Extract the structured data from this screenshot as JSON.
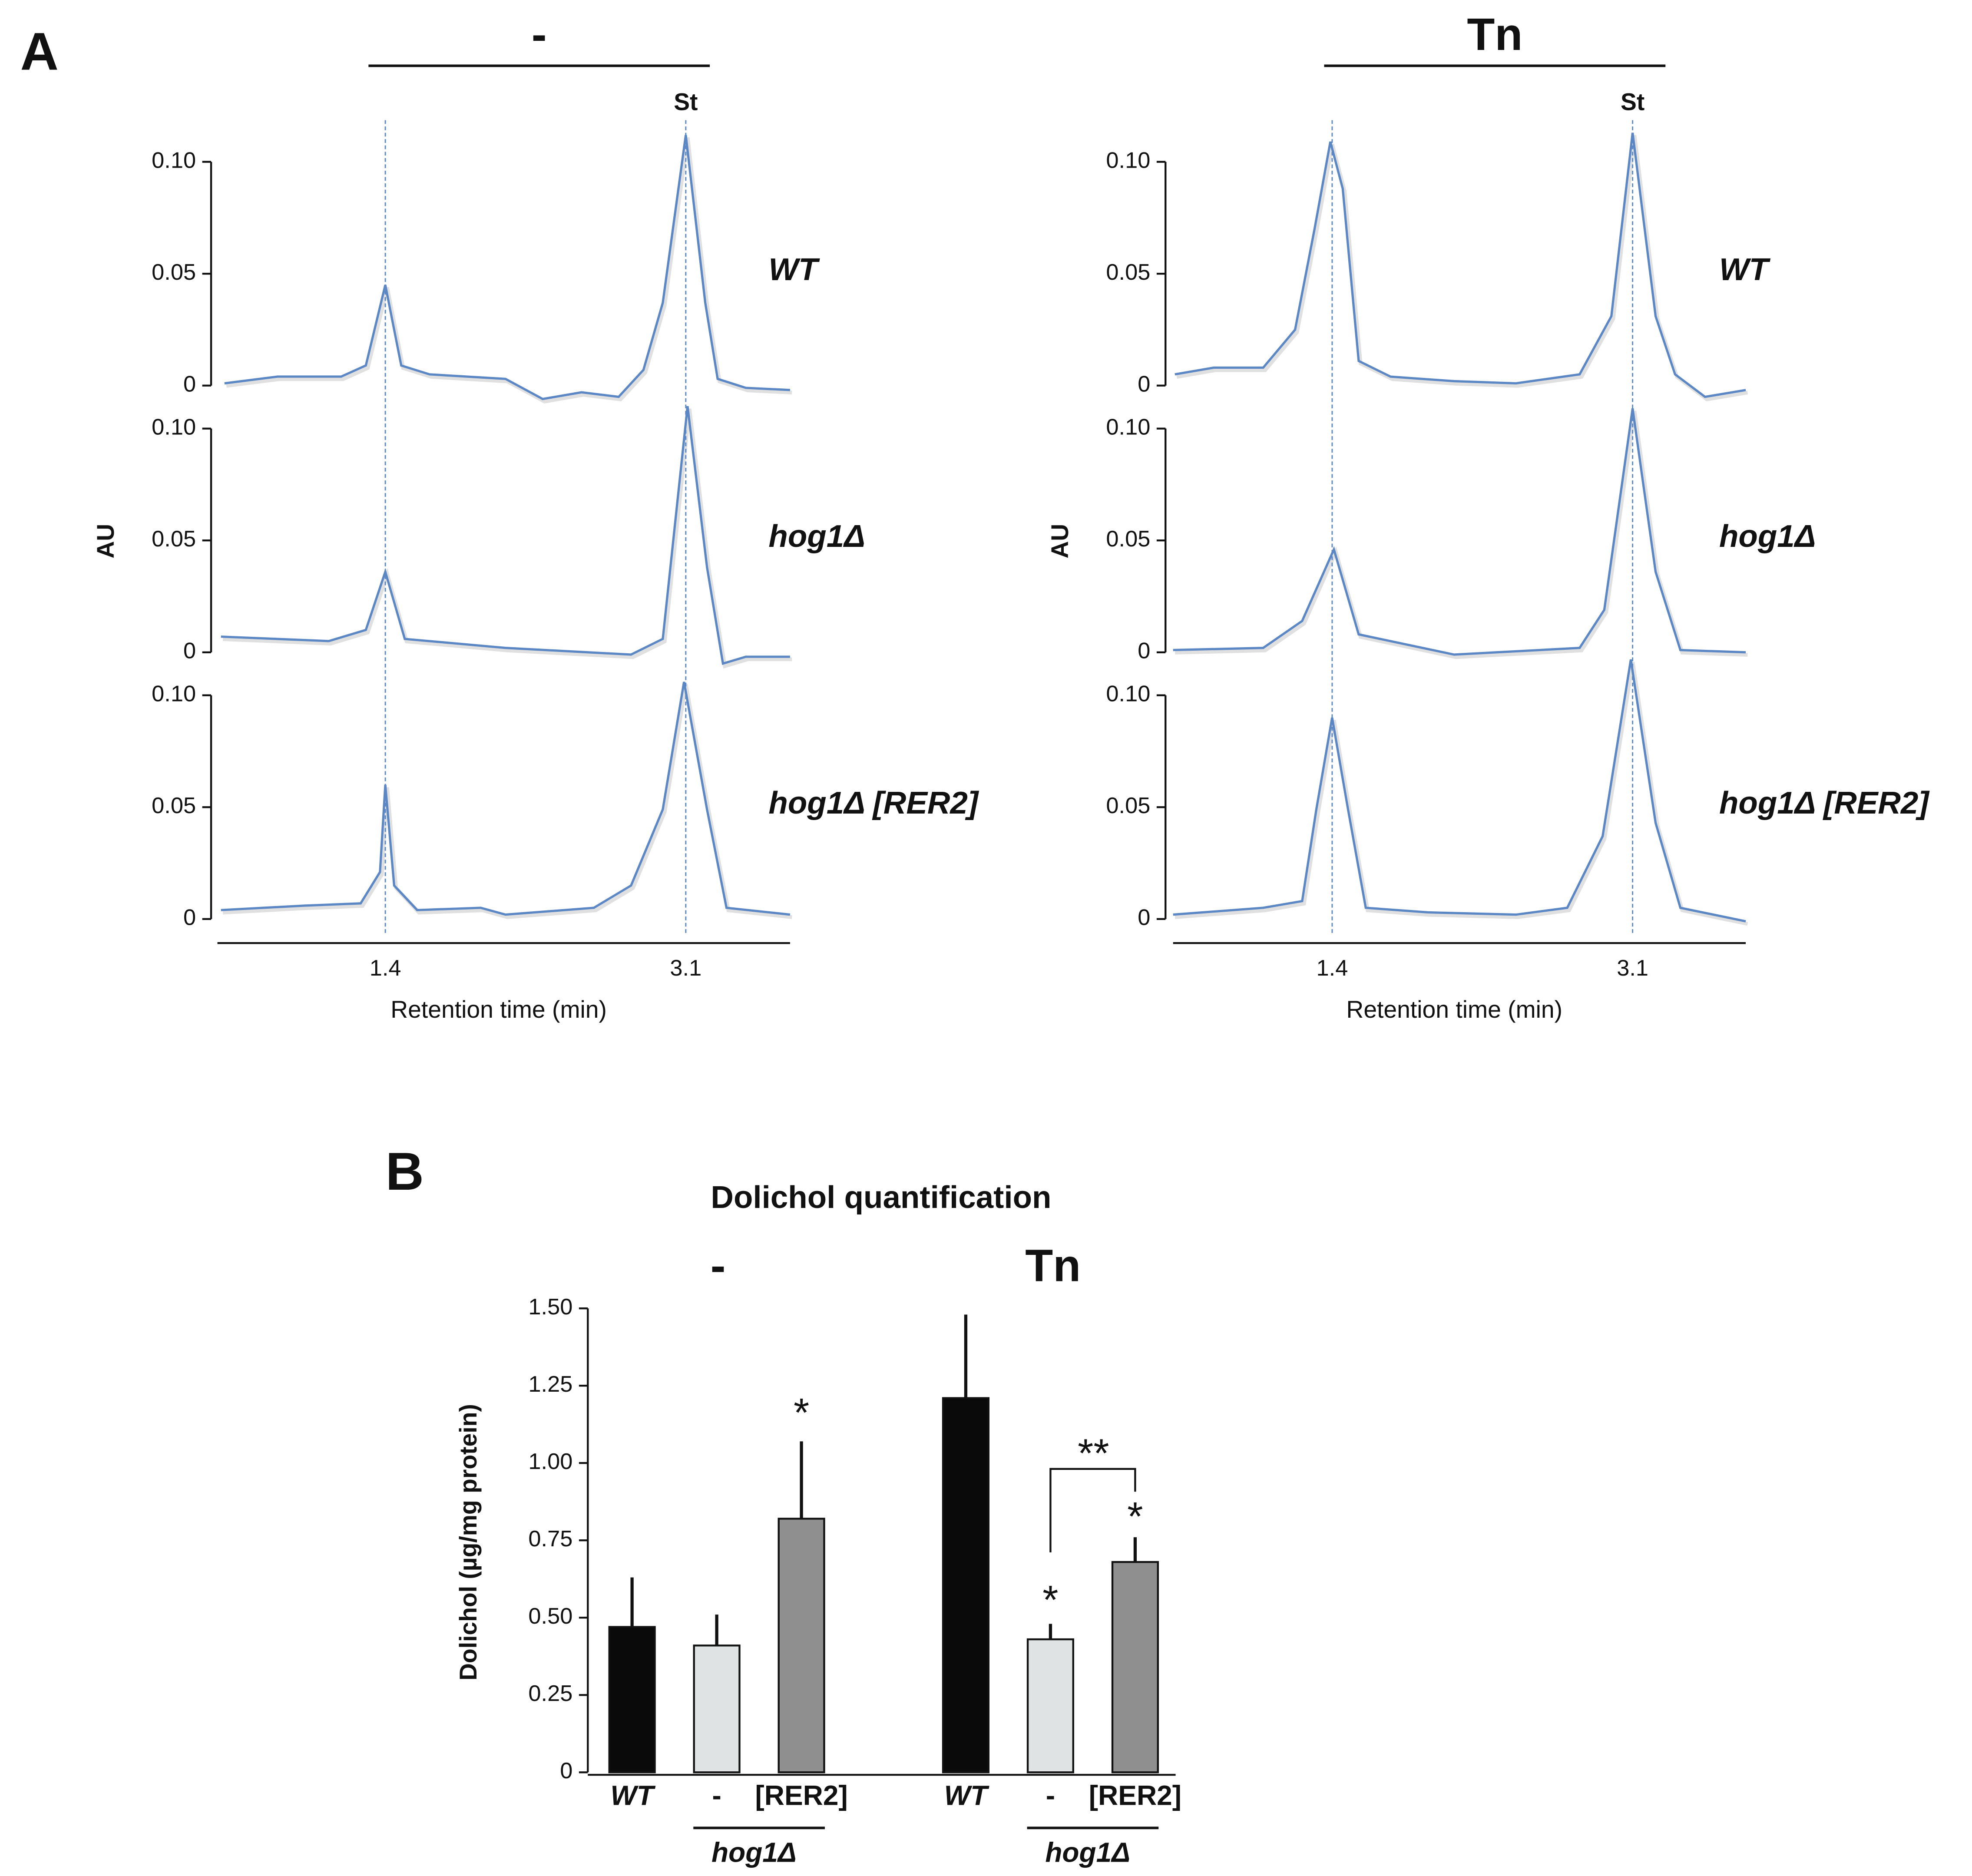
{
  "panel_labels": [
    "A",
    "B"
  ],
  "chart_data": [
    {
      "type": "line",
      "title": "-",
      "annotation": "St",
      "label": "WT",
      "color": "#5b87c5",
      "x": [
        0.49,
        0.79,
        1.15,
        1.29,
        1.4,
        1.49,
        1.65,
        2.08,
        2.29,
        2.51,
        2.72,
        2.86,
        2.97,
        3.1,
        3.21,
        3.28,
        3.44,
        3.69
      ],
      "values": [
        0.001,
        0.004,
        0.004,
        0.009,
        0.045,
        0.009,
        0.005,
        0.003,
        -0.006,
        -0.003,
        -0.005,
        0.007,
        0.037,
        0.112,
        0.037,
        0.003,
        -0.001,
        -0.002
      ],
      "xlim": [
        0.45,
        3.69
      ],
      "ylim": [
        0,
        0.1
      ],
      "yticks": [
        0,
        {
          "value": 0.05,
          "label": "0.05"
        },
        {
          "value": 0.1,
          "label": "0.10"
        }
      ]
    },
    {
      "type": "line",
      "ylabel": "AU",
      "label": "hog1Δ",
      "color": "#5b87c5",
      "x": [
        0.47,
        1.08,
        1.29,
        1.4,
        1.51,
        2.08,
        2.79,
        2.97,
        3.11,
        3.22,
        3.31,
        3.44,
        3.69
      ],
      "values": [
        0.007,
        0.005,
        0.01,
        0.036,
        0.006,
        0.002,
        -0.001,
        0.006,
        0.11,
        0.038,
        -0.005,
        -0.002,
        -0.002
      ],
      "xlim": [
        0.45,
        3.69
      ],
      "ylim": [
        0,
        0.1
      ],
      "yticks": [
        0,
        {
          "value": 0.05,
          "label": "0.05"
        },
        {
          "value": 0.1,
          "label": "0.10"
        }
      ]
    },
    {
      "type": "line",
      "label": "hog1Δ [RER2]",
      "color": "#5b87c5",
      "xlabel": "Retention time (min)",
      "xticks": [
        1.4,
        3.1
      ],
      "x": [
        0.47,
        0.94,
        1.26,
        1.37,
        1.4,
        1.45,
        1.58,
        1.94,
        2.08,
        2.58,
        2.79,
        2.97,
        3.09,
        3.22,
        3.33,
        3.69
      ],
      "values": [
        0.004,
        0.006,
        0.007,
        0.021,
        0.06,
        0.015,
        0.004,
        0.005,
        0.002,
        0.005,
        0.015,
        0.049,
        0.106,
        0.049,
        0.005,
        0.002
      ],
      "xlim": [
        0.45,
        3.69
      ],
      "ylim": [
        0,
        0.1
      ],
      "yticks": [
        0,
        {
          "value": 0.05,
          "label": "0.05"
        },
        {
          "value": 0.1,
          "label": "0.10"
        }
      ]
    },
    {
      "type": "line",
      "title": "Tn",
      "annotation": "St",
      "label": "WT",
      "color": "#5b87c5",
      "x": [
        0.51,
        0.73,
        1.01,
        1.19,
        1.3,
        1.39,
        1.46,
        1.55,
        1.73,
        2.09,
        2.44,
        2.8,
        2.98,
        3.1,
        3.23,
        3.34,
        3.51,
        3.74
      ],
      "values": [
        0.005,
        0.008,
        0.008,
        0.025,
        0.07,
        0.109,
        0.088,
        0.011,
        0.004,
        0.002,
        0.001,
        0.005,
        0.031,
        0.113,
        0.031,
        0.005,
        -0.005,
        -0.002
      ],
      "xlim": [
        0.5,
        3.74
      ],
      "ylim": [
        0,
        0.1
      ],
      "yticks": [
        0,
        {
          "value": 0.05,
          "label": "0.05"
        },
        {
          "value": 0.1,
          "label": "0.10"
        }
      ]
    },
    {
      "type": "line",
      "ylabel": "AU",
      "label": "hog1Δ",
      "color": "#5b87c5",
      "x": [
        0.5,
        1.01,
        1.23,
        1.41,
        1.55,
        2.09,
        2.8,
        2.94,
        3.1,
        3.23,
        3.37,
        3.74
      ],
      "values": [
        0.001,
        0.002,
        0.014,
        0.046,
        0.008,
        -0.001,
        0.002,
        0.019,
        0.109,
        0.036,
        0.001,
        0
      ],
      "xlim": [
        0.5,
        3.74
      ],
      "ylim": [
        0,
        0.1
      ],
      "yticks": [
        0,
        {
          "value": 0.05,
          "label": "0.05"
        },
        {
          "value": 0.1,
          "label": "0.10"
        }
      ]
    },
    {
      "type": "line",
      "label": "hog1Δ [RER2]",
      "color": "#5b87c5",
      "xlabel": "Retention time (min)",
      "xticks": [
        1.4,
        3.1
      ],
      "x": [
        0.5,
        1.01,
        1.23,
        1.31,
        1.4,
        1.49,
        1.59,
        1.94,
        2.44,
        2.73,
        2.93,
        3.09,
        3.23,
        3.37,
        3.74
      ],
      "values": [
        0.002,
        0.005,
        0.008,
        0.049,
        0.09,
        0.049,
        0.005,
        0.003,
        0.002,
        0.005,
        0.037,
        0.116,
        0.043,
        0.005,
        -0.001
      ],
      "xlim": [
        0.5,
        3.74
      ],
      "ylim": [
        0,
        0.1
      ],
      "yticks": [
        0,
        {
          "value": 0.05,
          "label": "0.05"
        },
        {
          "value": 0.1,
          "label": "0.10"
        }
      ]
    },
    {
      "type": "bar",
      "title": "Dolichol quantification",
      "ylabel": "Dolichol (µg/mg protein)",
      "groups": [
        "-",
        "Tn"
      ],
      "group_sublabels": [
        "hog1Δ",
        "hog1Δ"
      ],
      "categories": [
        "WT",
        "-",
        "[RER2]",
        "WT",
        "-",
        "[RER2]"
      ],
      "values": [
        0.47,
        0.41,
        0.82,
        1.21,
        0.43,
        0.68
      ],
      "errors": [
        0.16,
        0.1,
        0.25,
        0.27,
        0.05,
        0.08
      ],
      "colors": [
        "#0a0a0a",
        "#e0e3e3",
        "#8f8f8f",
        "#0a0a0a",
        "#e0e3e3",
        "#8f8f8f"
      ],
      "annotations": [
        "*",
        "*",
        "*",
        "**"
      ],
      "ylim": [
        0,
        1.5
      ],
      "yticks": [
        0,
        {
          "value": 0.25,
          "label": "0.25"
        },
        {
          "value": 0.5,
          "label": "0.50"
        },
        {
          "value": 0.75,
          "label": "0.75"
        },
        {
          "value": 1,
          "label": "1.00"
        },
        {
          "value": 1.25,
          "label": "1.25"
        },
        {
          "value": 1.5,
          "label": "1.50"
        }
      ]
    }
  ]
}
